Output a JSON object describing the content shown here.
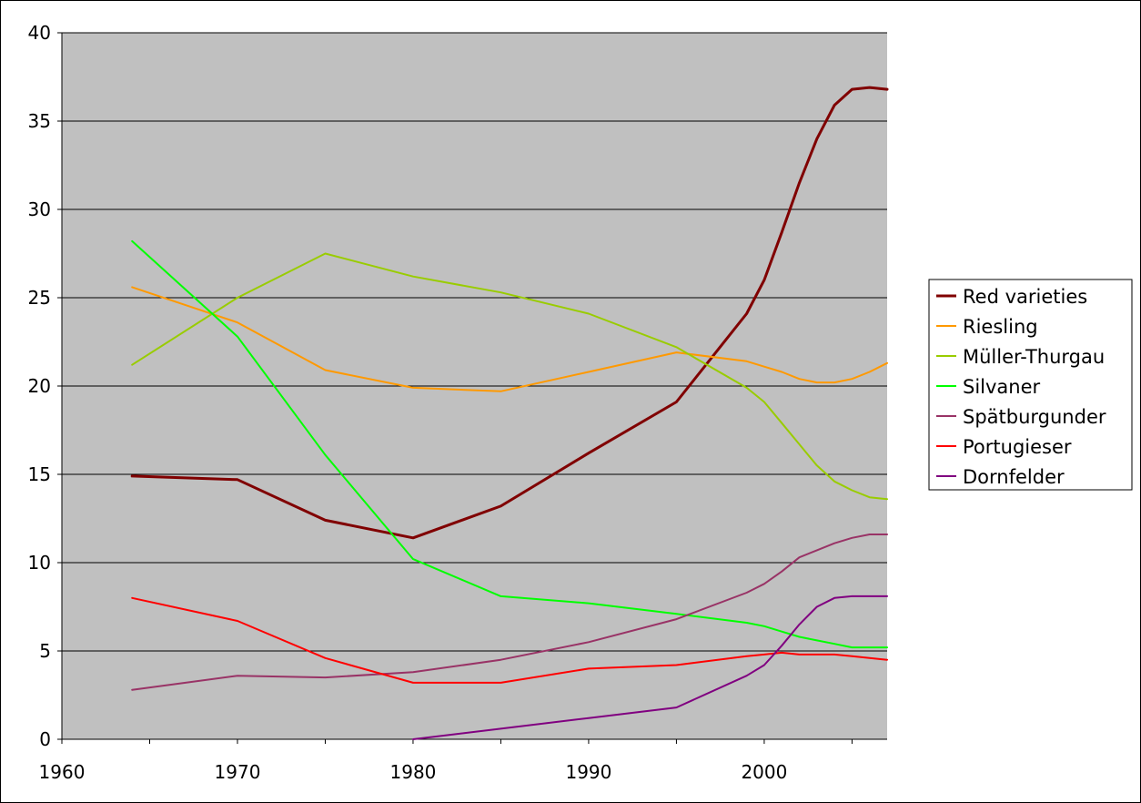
{
  "chart_data": {
    "type": "line",
    "title": "",
    "xlabel": "",
    "ylabel": "",
    "xlim": [
      1960,
      2007
    ],
    "ylim": [
      0,
      40
    ],
    "x_ticks": [
      1960,
      1970,
      1980,
      1990,
      2000
    ],
    "y_ticks": [
      0,
      5,
      10,
      15,
      20,
      25,
      30,
      35,
      40
    ],
    "grid": "horizontal",
    "plot_background": "#c0c0c0",
    "legend_position": "right",
    "series": [
      {
        "name": "Red varieties",
        "color": "#800000",
        "bold": true,
        "points": [
          [
            1964,
            14.9
          ],
          [
            1970,
            14.7
          ],
          [
            1975,
            12.4
          ],
          [
            1980,
            11.4
          ],
          [
            1985,
            13.2
          ],
          [
            1990,
            16.2
          ],
          [
            1995,
            19.1
          ],
          [
            1999,
            24.1
          ],
          [
            2000,
            26.0
          ],
          [
            2001,
            28.7
          ],
          [
            2002,
            31.5
          ],
          [
            2003,
            34.0
          ],
          [
            2004,
            35.9
          ],
          [
            2005,
            36.8
          ],
          [
            2006,
            36.9
          ],
          [
            2007,
            36.8
          ]
        ]
      },
      {
        "name": "Riesling",
        "color": "#ff9900",
        "points": [
          [
            1964,
            25.6
          ],
          [
            1970,
            23.6
          ],
          [
            1975,
            20.9
          ],
          [
            1980,
            19.9
          ],
          [
            1985,
            19.7
          ],
          [
            1990,
            20.8
          ],
          [
            1995,
            21.9
          ],
          [
            1999,
            21.4
          ],
          [
            2000,
            21.1
          ],
          [
            2001,
            20.8
          ],
          [
            2002,
            20.4
          ],
          [
            2003,
            20.2
          ],
          [
            2004,
            20.2
          ],
          [
            2005,
            20.4
          ],
          [
            2006,
            20.8
          ],
          [
            2007,
            21.3
          ]
        ]
      },
      {
        "name": "Müller-Thurgau",
        "color": "#99cc00",
        "points": [
          [
            1964,
            21.2
          ],
          [
            1970,
            25.0
          ],
          [
            1975,
            27.5
          ],
          [
            1980,
            26.2
          ],
          [
            1985,
            25.3
          ],
          [
            1990,
            24.1
          ],
          [
            1995,
            22.2
          ],
          [
            1999,
            19.9
          ],
          [
            2000,
            19.1
          ],
          [
            2001,
            17.9
          ],
          [
            2002,
            16.7
          ],
          [
            2003,
            15.5
          ],
          [
            2004,
            14.6
          ],
          [
            2005,
            14.1
          ],
          [
            2006,
            13.7
          ],
          [
            2007,
            13.6
          ]
        ]
      },
      {
        "name": "Silvaner",
        "color": "#00ff00",
        "points": [
          [
            1964,
            28.2
          ],
          [
            1970,
            22.8
          ],
          [
            1975,
            16.1
          ],
          [
            1980,
            10.2
          ],
          [
            1985,
            8.1
          ],
          [
            1990,
            7.7
          ],
          [
            1995,
            7.1
          ],
          [
            1999,
            6.6
          ],
          [
            2000,
            6.4
          ],
          [
            2001,
            6.1
          ],
          [
            2002,
            5.8
          ],
          [
            2003,
            5.6
          ],
          [
            2004,
            5.4
          ],
          [
            2005,
            5.2
          ],
          [
            2006,
            5.2
          ],
          [
            2007,
            5.2
          ]
        ]
      },
      {
        "name": "Spätburgunder",
        "color": "#993366",
        "points": [
          [
            1964,
            2.8
          ],
          [
            1970,
            3.6
          ],
          [
            1975,
            3.5
          ],
          [
            1980,
            3.8
          ],
          [
            1985,
            4.5
          ],
          [
            1990,
            5.5
          ],
          [
            1995,
            6.8
          ],
          [
            1999,
            8.3
          ],
          [
            2000,
            8.8
          ],
          [
            2001,
            9.5
          ],
          [
            2002,
            10.3
          ],
          [
            2003,
            10.7
          ],
          [
            2004,
            11.1
          ],
          [
            2005,
            11.4
          ],
          [
            2006,
            11.6
          ],
          [
            2007,
            11.6
          ]
        ]
      },
      {
        "name": "Portugieser",
        "color": "#ff0000",
        "points": [
          [
            1964,
            8.0
          ],
          [
            1970,
            6.7
          ],
          [
            1975,
            4.6
          ],
          [
            1980,
            3.2
          ],
          [
            1985,
            3.2
          ],
          [
            1990,
            4.0
          ],
          [
            1995,
            4.2
          ],
          [
            1999,
            4.7
          ],
          [
            2000,
            4.8
          ],
          [
            2001,
            4.9
          ],
          [
            2002,
            4.8
          ],
          [
            2003,
            4.8
          ],
          [
            2004,
            4.8
          ],
          [
            2005,
            4.7
          ],
          [
            2006,
            4.6
          ],
          [
            2007,
            4.5
          ]
        ]
      },
      {
        "name": "Dornfelder",
        "color": "#800080",
        "points": [
          [
            1980,
            0.0
          ],
          [
            1985,
            0.6
          ],
          [
            1990,
            1.2
          ],
          [
            1995,
            1.8
          ],
          [
            1999,
            3.6
          ],
          [
            2000,
            4.2
          ],
          [
            2001,
            5.3
          ],
          [
            2002,
            6.5
          ],
          [
            2003,
            7.5
          ],
          [
            2004,
            8.0
          ],
          [
            2005,
            8.1
          ],
          [
            2006,
            8.1
          ],
          [
            2007,
            8.1
          ]
        ]
      }
    ]
  }
}
